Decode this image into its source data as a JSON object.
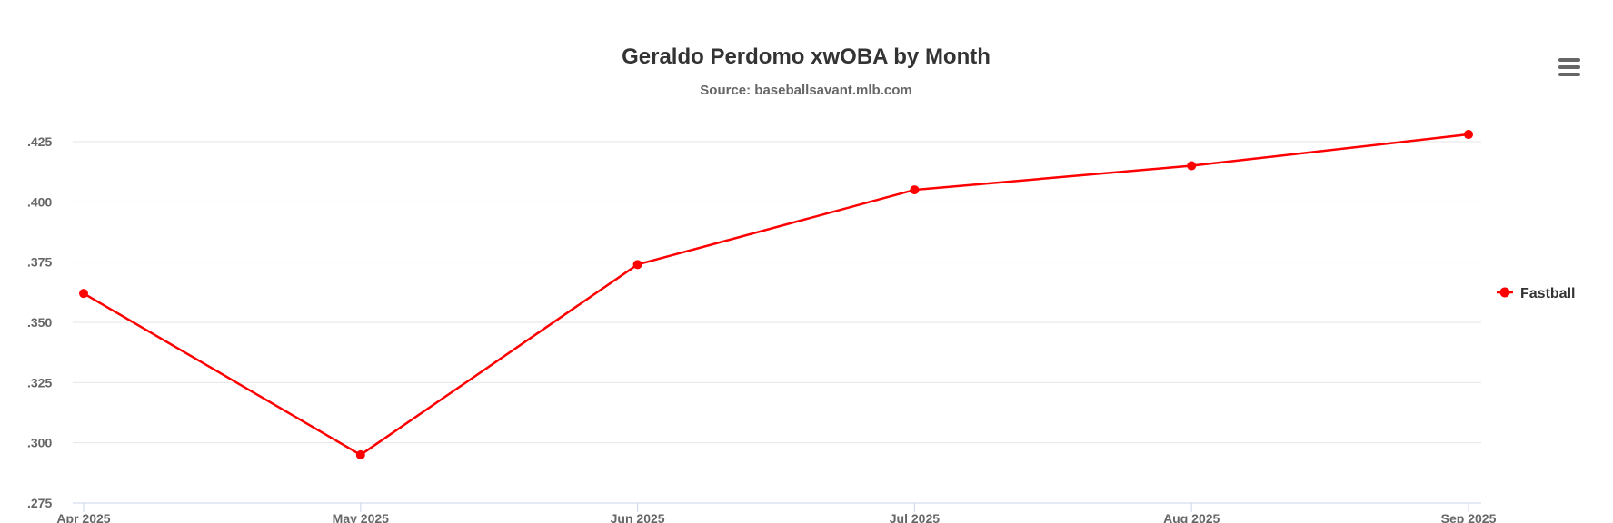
{
  "chart_data": {
    "type": "line",
    "title": "Geraldo Perdomo xwOBA by Month",
    "subtitle": "Source: baseballsavant.mlb.com",
    "categories": [
      "Apr 2025",
      "May 2025",
      "Jun 2025",
      "Jul 2025",
      "Aug 2025",
      "Sep 2025"
    ],
    "series": [
      {
        "name": "Fastball",
        "color": "#ff0000",
        "values": [
          0.362,
          0.295,
          0.374,
          0.405,
          0.415,
          0.428
        ]
      }
    ],
    "y_ticks": [
      ".275",
      ".300",
      ".325",
      ".350",
      ".375",
      ".400",
      ".425"
    ],
    "ylim": [
      0.275,
      0.425
    ],
    "grid": true,
    "legend_position": "right"
  },
  "menu": {
    "icon": "hamburger-menu-icon"
  }
}
